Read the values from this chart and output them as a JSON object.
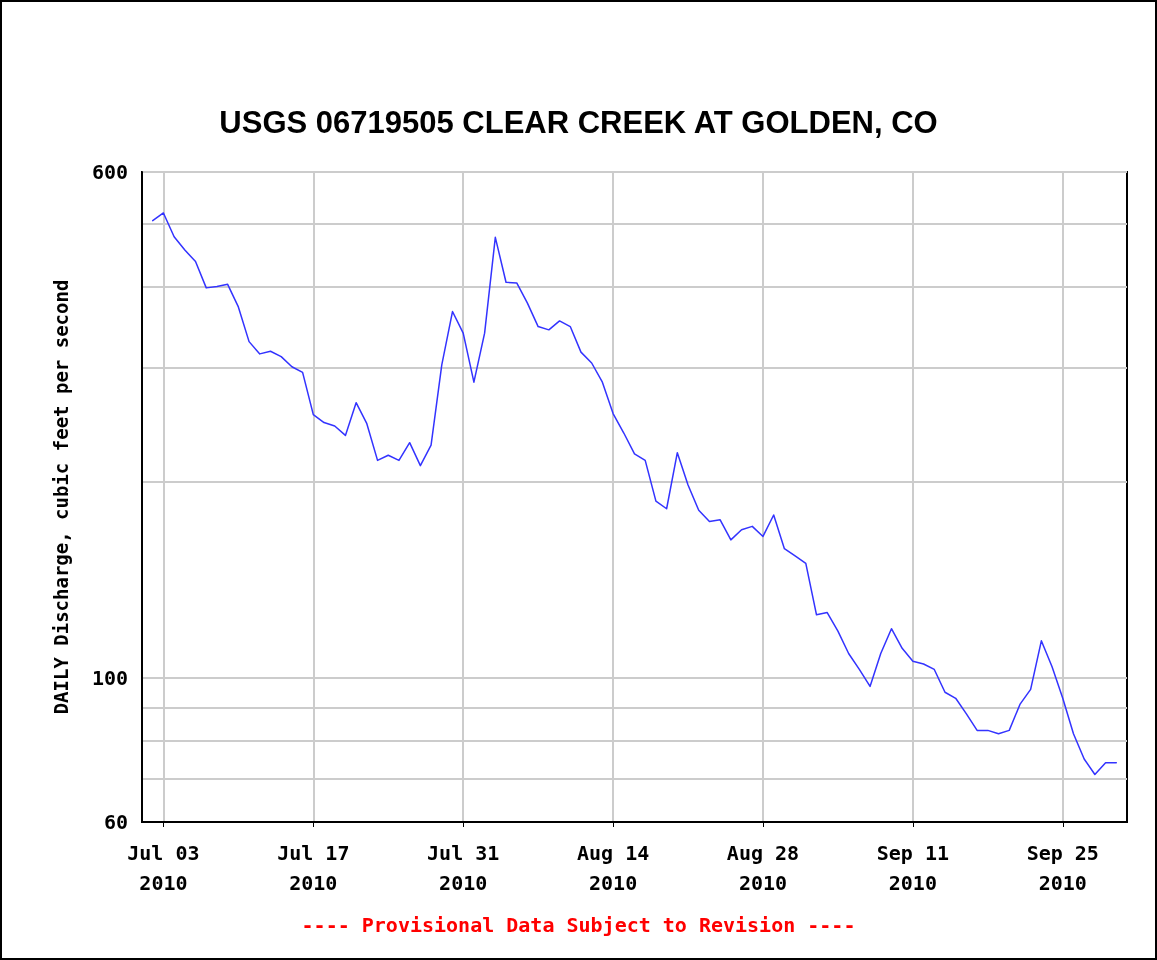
{
  "chart_data": {
    "type": "line",
    "title": "USGS 06719505 CLEAR CREEK AT GOLDEN, CO",
    "ylabel": "DAILY Discharge, cubic feet per second",
    "annotations": [
      "---- Provisional Data Subject to Revision ----"
    ],
    "x": [
      "2010-07-02",
      "2010-07-03",
      "2010-07-04",
      "2010-07-05",
      "2010-07-06",
      "2010-07-07",
      "2010-07-08",
      "2010-07-09",
      "2010-07-10",
      "2010-07-11",
      "2010-07-12",
      "2010-07-13",
      "2010-07-14",
      "2010-07-15",
      "2010-07-16",
      "2010-07-17",
      "2010-07-18",
      "2010-07-19",
      "2010-07-20",
      "2010-07-21",
      "2010-07-22",
      "2010-07-23",
      "2010-07-24",
      "2010-07-25",
      "2010-07-26",
      "2010-07-27",
      "2010-07-28",
      "2010-07-29",
      "2010-07-30",
      "2010-07-31",
      "2010-08-01",
      "2010-08-02",
      "2010-08-03",
      "2010-08-04",
      "2010-08-05",
      "2010-08-06",
      "2010-08-07",
      "2010-08-08",
      "2010-08-09",
      "2010-08-10",
      "2010-08-11",
      "2010-08-12",
      "2010-08-13",
      "2010-08-14",
      "2010-08-15",
      "2010-08-16",
      "2010-08-17",
      "2010-08-18",
      "2010-08-19",
      "2010-08-20",
      "2010-08-21",
      "2010-08-22",
      "2010-08-23",
      "2010-08-24",
      "2010-08-25",
      "2010-08-26",
      "2010-08-27",
      "2010-08-28",
      "2010-08-29",
      "2010-08-30",
      "2010-08-31",
      "2010-09-01",
      "2010-09-02",
      "2010-09-03",
      "2010-09-04",
      "2010-09-05",
      "2010-09-06",
      "2010-09-07",
      "2010-09-08",
      "2010-09-09",
      "2010-09-10",
      "2010-09-11",
      "2010-09-12",
      "2010-09-13",
      "2010-09-14",
      "2010-09-15",
      "2010-09-16",
      "2010-09-17",
      "2010-09-18",
      "2010-09-19",
      "2010-09-20",
      "2010-09-21",
      "2010-09-22",
      "2010-09-23",
      "2010-09-24",
      "2010-09-25",
      "2010-09-26",
      "2010-09-27",
      "2010-09-28",
      "2010-09-29",
      "2010-09-30"
    ],
    "series": [
      {
        "color": "#3333ff",
        "values": [
          505,
          519,
          477,
          455,
          437,
          398,
          400,
          403,
          372,
          329,
          315,
          318,
          312,
          301,
          295,
          254,
          247,
          244,
          236,
          265,
          246,
          216,
          220,
          216,
          230,
          212,
          228,
          303,
          366,
          339,
          285,
          339,
          476,
          406,
          405,
          377,
          347,
          343,
          354,
          347,
          317,
          305,
          285,
          255,
          238,
          221,
          216,
          187,
          182,
          222,
          198,
          181,
          174,
          175,
          163,
          169,
          171,
          165,
          178,
          158,
          154,
          150,
          125,
          126,
          118,
          109,
          103,
          97,
          109,
          119,
          111,
          106,
          105,
          103,
          95,
          93,
          88,
          83,
          83,
          82,
          83,
          91,
          96,
          114,
          104,
          93,
          82,
          75,
          71,
          74,
          74
        ]
      }
    ],
    "xlim": [
      "2010-07-01",
      "2010-10-01"
    ],
    "xticks": [
      {
        "value": "2010-07-03",
        "label": "Jul 03\n2010"
      },
      {
        "value": "2010-07-17",
        "label": "Jul 17\n2010"
      },
      {
        "value": "2010-07-31",
        "label": "Jul 31\n2010"
      },
      {
        "value": "2010-08-14",
        "label": "Aug 14\n2010"
      },
      {
        "value": "2010-08-28",
        "label": "Aug 28\n2010"
      },
      {
        "value": "2010-09-11",
        "label": "Sep 11\n2010"
      },
      {
        "value": "2010-09-25",
        "label": "Sep 25\n2010"
      }
    ],
    "ylim": [
      60,
      600
    ],
    "yticks": [
      60,
      {
        "value": 70,
        "label": null
      },
      {
        "value": 80,
        "label": null
      },
      {
        "value": 90,
        "label": null
      },
      100,
      {
        "value": 200,
        "label": null
      },
      {
        "value": 300,
        "label": null
      },
      {
        "value": 400,
        "label": null
      },
      {
        "value": 500,
        "label": null
      },
      600
    ],
    "log": "y",
    "grid": true,
    "marker": "none",
    "line_style": "solid"
  }
}
